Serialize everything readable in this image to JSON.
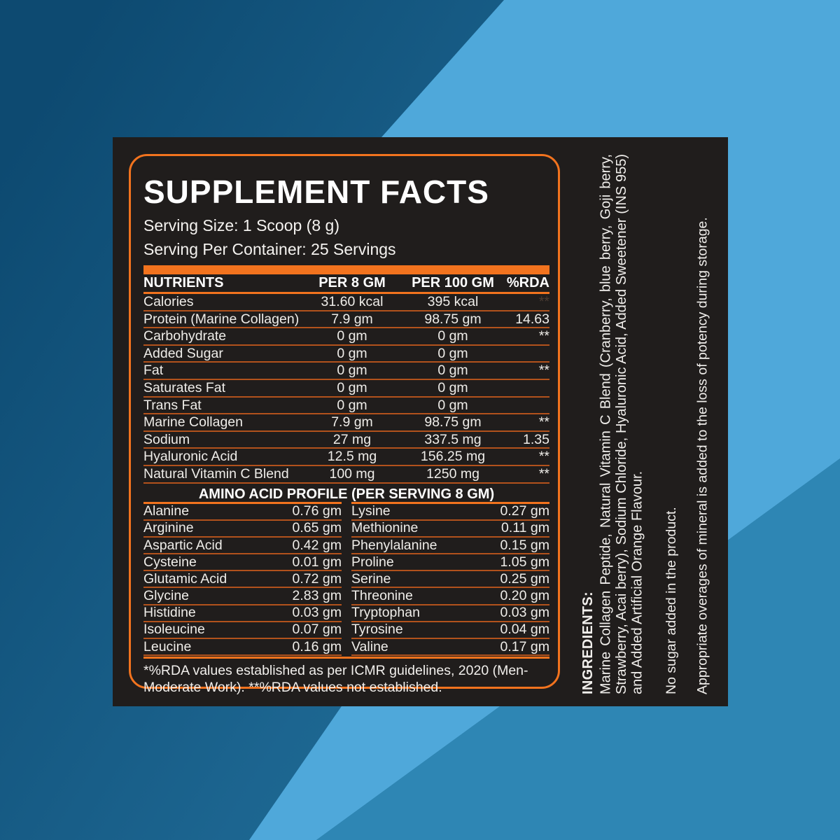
{
  "colors": {
    "accent_orange": "#f2731e",
    "divider_orange": "#b2521c",
    "panel_dark": "#201d1c",
    "bg_dark_blue": "#0d4a71",
    "bg_mid_blue": "#27719a",
    "bg_light_blue": "#4fa8da",
    "bg_medium_blue": "#2e86b4",
    "text_white": "#ffffff"
  },
  "label": {
    "title": "SUPPLEMENT FACTS",
    "serving_size": "Serving Size: 1 Scoop (8 g)",
    "serving_per_container": "Serving Per Container: 25 Servings",
    "nutrients": {
      "headers": [
        "NUTRIENTS",
        "PER 8 GM",
        "PER 100 GM",
        "%RDA"
      ],
      "rows": [
        {
          "name": "Calories",
          "per_8gm": "31.60 kcal",
          "per_100gm": "395 kcal",
          "rda": "**",
          "dim": true
        },
        {
          "name": "Protein (Marine Collagen)",
          "per_8gm": "7.9 gm",
          "per_100gm": "98.75 gm",
          "rda": "14.63"
        },
        {
          "name": "Carbohydrate",
          "per_8gm": "0 gm",
          "per_100gm": "0 gm",
          "rda": "**"
        },
        {
          "name": "Added Sugar",
          "per_8gm": "0 gm",
          "per_100gm": "0 gm",
          "rda": ""
        },
        {
          "name": "Fat",
          "per_8gm": "0 gm",
          "per_100gm": "0 gm",
          "rda": "**"
        },
        {
          "name": "Saturates Fat",
          "per_8gm": "0 gm",
          "per_100gm": "0 gm",
          "rda": ""
        },
        {
          "name": "Trans Fat",
          "per_8gm": "0 gm",
          "per_100gm": "0 gm",
          "rda": ""
        },
        {
          "name": "Marine Collagen",
          "per_8gm": "7.9 gm",
          "per_100gm": "98.75 gm",
          "rda": "**"
        },
        {
          "name": "Sodium",
          "per_8gm": "27 mg",
          "per_100gm": "337.5 mg",
          "rda": "1.35"
        },
        {
          "name": "Hyaluronic Acid",
          "per_8gm": "12.5 mg",
          "per_100gm": "156.25 mg",
          "rda": "**"
        },
        {
          "name": "Natural Vitamin C Blend",
          "per_8gm": "100 mg",
          "per_100gm": "1250 mg",
          "rda": "**"
        }
      ]
    },
    "amino": {
      "title": "AMINO ACID PROFILE (PER SERVING 8 GM)",
      "left": [
        {
          "name": "Alanine",
          "value": "0.76 gm"
        },
        {
          "name": "Arginine",
          "value": "0.65 gm"
        },
        {
          "name": "Aspartic Acid",
          "value": "0.42 gm"
        },
        {
          "name": "Cysteine",
          "value": "0.01 gm"
        },
        {
          "name": "Glutamic Acid",
          "value": "0.72 gm"
        },
        {
          "name": "Glycine",
          "value": "2.83 gm"
        },
        {
          "name": "Histidine",
          "value": "0.03 gm"
        },
        {
          "name": "Isoleucine",
          "value": "0.07 gm"
        },
        {
          "name": "Leucine",
          "value": "0.16 gm"
        }
      ],
      "right": [
        {
          "name": "Lysine",
          "value": "0.27 gm"
        },
        {
          "name": "Methionine",
          "value": "0.11 gm"
        },
        {
          "name": "Phenylalanine",
          "value": "0.15 gm"
        },
        {
          "name": "Proline",
          "value": "1.05 gm"
        },
        {
          "name": "Serine",
          "value": "0.25 gm"
        },
        {
          "name": "Threonine",
          "value": "0.20 gm"
        },
        {
          "name": "Tryptophan",
          "value": "0.03 gm"
        },
        {
          "name": "Tyrosine",
          "value": "0.04 gm"
        },
        {
          "name": "Valine",
          "value": "0.17 gm"
        }
      ]
    },
    "footnote": "*%RDA values established as per ICMR guidelines, 2020 (Men-Moderate Work). **%RDA values not established."
  },
  "side_panel": {
    "ingredients_heading": "INGREDIENTS:",
    "ingredients": "Marine Collagen Peptide, Natural Vitamin C Blend (Cranberry, blue berry, Goji berry, Strawberry, Acai berry), Sodium Chloride, Hyaluronic Acid, Added Sweetener (INS 955) and Added Artificial Orange Flavour.",
    "note_no_sugar": "No sugar added in the product.",
    "note_overages": "Appropriate overages of mineral is added to the loss of potency during storage."
  }
}
